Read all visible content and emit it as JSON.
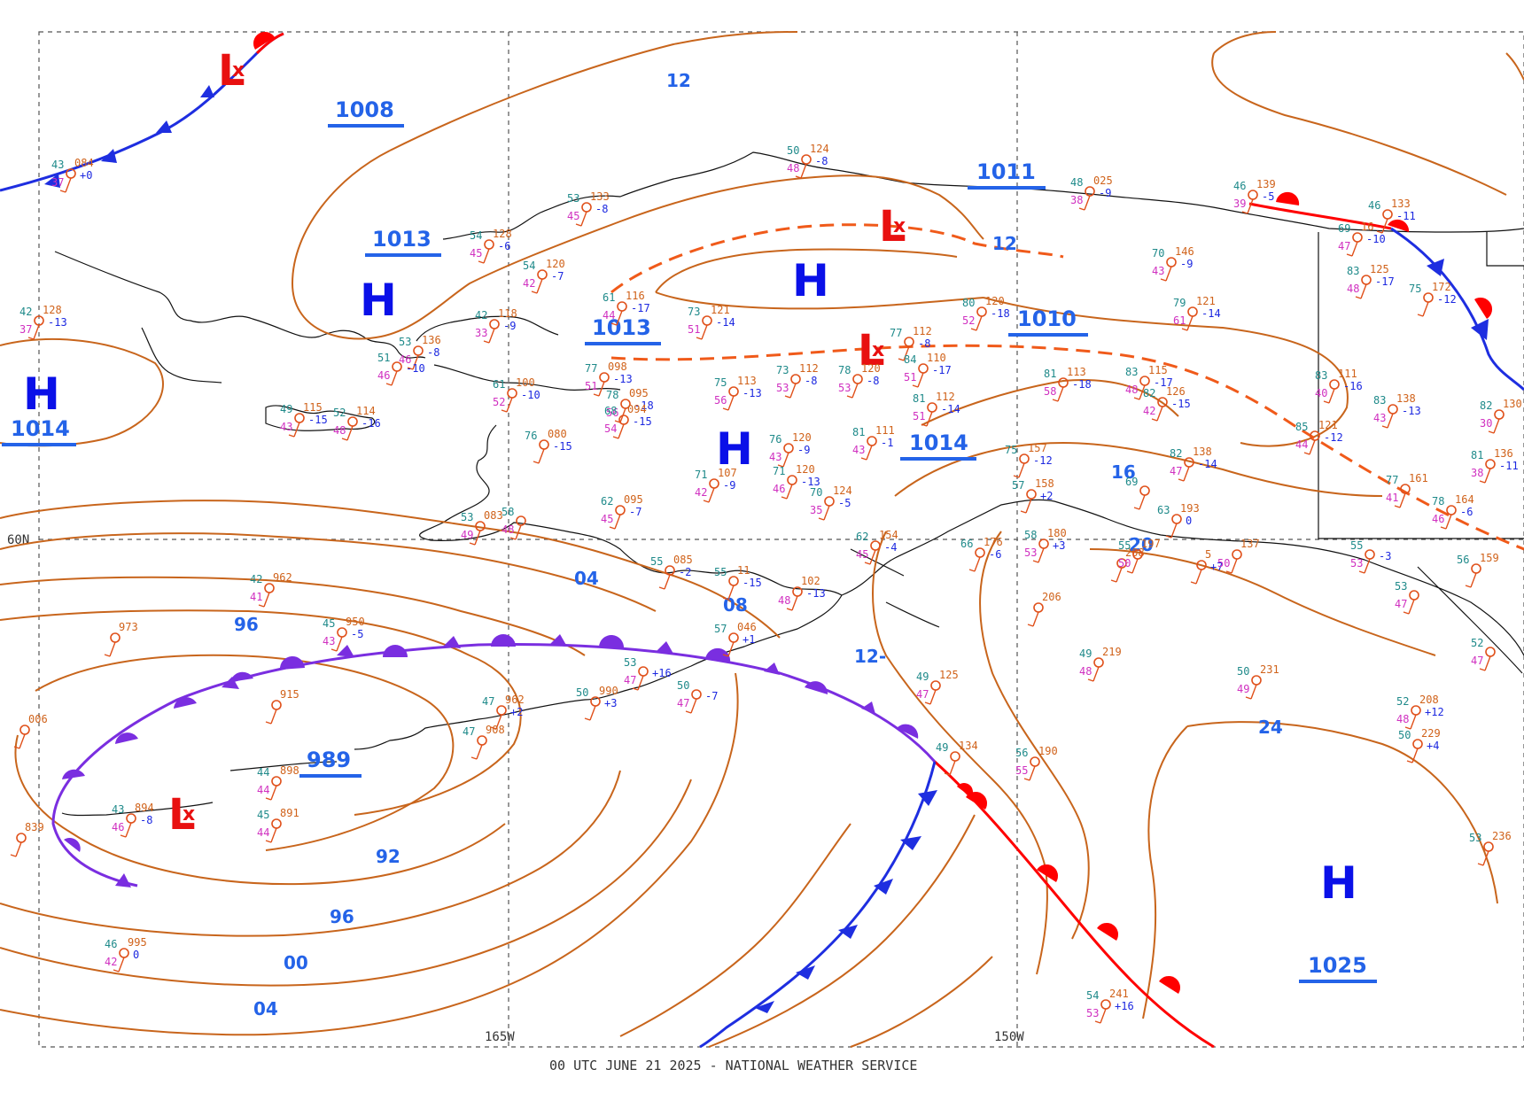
{
  "footer": "00 UTC JUNE 21 2025 - NATIONAL WEATHER SERVICE",
  "axes": {
    "lat_label": "60N",
    "lon_labels": [
      "165W",
      "150W"
    ]
  },
  "colors": {
    "isobar": "#c8651c",
    "pressure_label": "#2463e8",
    "high": "#0a10e8",
    "low": "#e81010",
    "cold_front": "#1e2ee0",
    "warm_front": "#ff0000",
    "occluded_front": "#7a2ee0",
    "trough": "#f05a1a"
  },
  "pressure_centers": [
    {
      "symbol": "H",
      "value": "1014"
    },
    {
      "symbol": "H",
      "value": "1013"
    },
    {
      "symbol": "H",
      "value": "1014"
    },
    {
      "symbol": "H",
      "value": "1014"
    },
    {
      "symbol": "H",
      "value": "1025"
    },
    {
      "symbol": "L",
      "value": "1008"
    },
    {
      "symbol": "L",
      "value": "1011"
    },
    {
      "symbol": "L",
      "value": "1010"
    },
    {
      "symbol": "L",
      "value": "989"
    }
  ],
  "isobar_labels": [
    "12",
    "12",
    "12-",
    "04",
    "08",
    "96",
    "96",
    "92",
    "00",
    "04",
    "16",
    "20",
    "24"
  ],
  "stations": [
    {
      "t": "43",
      "p": "084",
      "d": "37",
      "c": "+0"
    },
    {
      "t": "42",
      "p": "128",
      "d": "37",
      "c": "-13"
    },
    {
      "t": "54",
      "p": "128",
      "d": "45",
      "c": "-6"
    },
    {
      "t": "53",
      "p": "133",
      "d": "45",
      "c": "-8"
    },
    {
      "t": "50",
      "p": "124",
      "d": "48",
      "c": "-8"
    },
    {
      "t": "54",
      "p": "120",
      "d": "42",
      "c": "-7"
    },
    {
      "t": "61",
      "p": "116",
      "d": "44",
      "c": "-17"
    },
    {
      "t": "73",
      "p": "121",
      "d": "51",
      "c": "-14"
    },
    {
      "t": "42",
      "p": "118",
      "d": "33",
      "c": "-9"
    },
    {
      "t": "53",
      "p": "136",
      "d": "46",
      "c": "-8"
    },
    {
      "t": "51",
      "p": "",
      "d": "46",
      "c": "-10"
    },
    {
      "t": "49",
      "p": "115",
      "d": "43",
      "c": "-15"
    },
    {
      "t": "52",
      "p": "114",
      "d": "48",
      "c": "-16"
    },
    {
      "t": "61",
      "p": "100",
      "d": "52",
      "c": "-10"
    },
    {
      "t": "77",
      "p": "098",
      "d": "51",
      "c": "-13"
    },
    {
      "t": "78",
      "p": "095",
      "d": "56",
      "c": "-18"
    },
    {
      "t": "68",
      "p": "094",
      "d": "54",
      "c": "-15"
    },
    {
      "t": "75",
      "p": "113",
      "d": "56",
      "c": "-13"
    },
    {
      "t": "73",
      "p": "112",
      "d": "53",
      "c": "-8"
    },
    {
      "t": "78",
      "p": "120",
      "d": "53",
      "c": "-8"
    },
    {
      "t": "77",
      "p": "112",
      "d": "",
      "c": "-8"
    },
    {
      "t": "80",
      "p": "120",
      "d": "52",
      "c": "-18"
    },
    {
      "t": "84",
      "p": "110",
      "d": "51",
      "c": "-17"
    },
    {
      "t": "81",
      "p": "112",
      "d": "51",
      "c": "-14"
    },
    {
      "t": "81",
      "p": "113",
      "d": "58",
      "c": "-18"
    },
    {
      "t": "83",
      "p": "115",
      "d": "48",
      "c": "-17"
    },
    {
      "t": "82",
      "p": "126",
      "d": "42",
      "c": "-15"
    },
    {
      "t": "76",
      "p": "080",
      "d": "",
      "c": "-15"
    },
    {
      "t": "76",
      "p": "120",
      "d": "43",
      "c": "-9"
    },
    {
      "t": "81",
      "p": "111",
      "d": "43",
      "c": "-1"
    },
    {
      "t": "71",
      "p": "107",
      "d": "42",
      "c": "-9"
    },
    {
      "t": "71",
      "p": "120",
      "d": "46",
      "c": "-13"
    },
    {
      "t": "70",
      "p": "124",
      "d": "35",
      "c": "-5"
    },
    {
      "t": "62",
      "p": "095",
      "d": "45",
      "c": "-7"
    },
    {
      "t": "53",
      "p": "083",
      "d": "49",
      "c": ""
    },
    {
      "t": "58",
      "p": "",
      "d": "48",
      "c": ""
    },
    {
      "t": "46",
      "p": "139",
      "d": "39",
      "c": "-5"
    },
    {
      "t": "48",
      "p": "025",
      "d": "38",
      "c": "-9"
    },
    {
      "t": "46",
      "p": "133",
      "d": "",
      "c": "-11"
    },
    {
      "t": "69",
      "p": "16",
      "d": "47",
      "c": "-10"
    },
    {
      "t": "70",
      "p": "146",
      "d": "43",
      "c": "-9"
    },
    {
      "t": "83",
      "p": "125",
      "d": "48",
      "c": "-17"
    },
    {
      "t": "79",
      "p": "121",
      "d": "61",
      "c": "-14"
    },
    {
      "t": "75",
      "p": "172",
      "d": "",
      "c": "-12"
    },
    {
      "t": "83",
      "p": "111",
      "d": "40",
      "c": "-16"
    },
    {
      "t": "83",
      "p": "138",
      "d": "43",
      "c": "-13"
    },
    {
      "t": "82",
      "p": "130",
      "d": "30",
      "c": ""
    },
    {
      "t": "85",
      "p": "121",
      "d": "44",
      "c": "-12"
    },
    {
      "t": "82",
      "p": "138",
      "d": "47",
      "c": "-14"
    },
    {
      "t": "81",
      "p": "136",
      "d": "38",
      "c": "-11"
    },
    {
      "t": "75",
      "p": "157",
      "d": "",
      "c": "-12"
    },
    {
      "t": "77",
      "p": "161",
      "d": "41",
      "c": ""
    },
    {
      "t": "78",
      "p": "164",
      "d": "46",
      "c": "-6"
    },
    {
      "t": "57",
      "p": "158",
      "d": "",
      "c": "+2"
    },
    {
      "t": "69",
      "p": "",
      "d": "",
      "c": ""
    },
    {
      "t": "63",
      "p": "193",
      "d": "",
      "c": "0"
    },
    {
      "t": "58",
      "p": "180",
      "d": "53",
      "c": "+3"
    },
    {
      "t": "62",
      "p": "154",
      "d": "45",
      "c": "-4"
    },
    {
      "t": "66",
      "p": "176",
      "d": "",
      "c": "-6"
    },
    {
      "t": "",
      "p": "208",
      "d": "",
      "c": ""
    },
    {
      "t": "",
      "p": "206",
      "d": "",
      "c": ""
    },
    {
      "t": "",
      "p": "5",
      "d": "",
      "c": "+7"
    },
    {
      "t": "55",
      "p": "085",
      "d": "",
      "c": "-2"
    },
    {
      "t": "55",
      "p": "11",
      "d": "",
      "c": "-15"
    },
    {
      "t": "",
      "p": "102",
      "d": "48",
      "c": "-13"
    },
    {
      "t": "57",
      "p": "046",
      "d": "",
      "c": "+1"
    },
    {
      "t": "42",
      "p": "962",
      "d": "41",
      "c": ""
    },
    {
      "t": "",
      "p": "973",
      "d": "",
      "c": ""
    },
    {
      "t": "45",
      "p": "950",
      "d": "43",
      "c": "-5"
    },
    {
      "t": "",
      "p": "915",
      "d": "",
      "c": ""
    },
    {
      "t": "",
      "p": "006",
      "d": "",
      "c": ""
    },
    {
      "t": "47",
      "p": "962",
      "d": "",
      "c": "+2"
    },
    {
      "t": "50",
      "p": "990",
      "d": "",
      "c": "+3"
    },
    {
      "t": "53",
      "p": "",
      "d": "47",
      "c": "+16"
    },
    {
      "t": "50",
      "p": "",
      "d": "47",
      "c": "-7"
    },
    {
      "t": "47",
      "p": "908",
      "d": "",
      "c": ""
    },
    {
      "t": "44",
      "p": "898",
      "d": "44",
      "c": ""
    },
    {
      "t": "43",
      "p": "894",
      "d": "46",
      "c": "-8"
    },
    {
      "t": "45",
      "p": "891",
      "d": "44",
      "c": ""
    },
    {
      "t": "",
      "p": "839",
      "d": "",
      "c": ""
    },
    {
      "t": "46",
      "p": "995",
      "d": "42",
      "c": "0"
    },
    {
      "t": "49",
      "p": "125",
      "d": "47",
      "c": ""
    },
    {
      "t": "49",
      "p": "134",
      "d": "",
      "c": ""
    },
    {
      "t": "56",
      "p": "190",
      "d": "55",
      "c": ""
    },
    {
      "t": "49",
      "p": "219",
      "d": "48",
      "c": ""
    },
    {
      "t": "50",
      "p": "231",
      "d": "49",
      "c": ""
    },
    {
      "t": "52",
      "p": "208",
      "d": "48",
      "c": "+12"
    },
    {
      "t": "50",
      "p": "229",
      "d": "",
      "c": "+4"
    },
    {
      "t": "53",
      "p": "236",
      "d": "",
      "c": ""
    },
    {
      "t": "54",
      "p": "241",
      "d": "53",
      "c": "+16"
    },
    {
      "t": "55",
      "p": "197",
      "d": "50",
      "c": ""
    },
    {
      "t": "",
      "p": "137",
      "d": "50",
      "c": ""
    },
    {
      "t": "55",
      "p": "",
      "d": "53",
      "c": "-3"
    },
    {
      "t": "53",
      "p": "",
      "d": "47",
      "c": ""
    },
    {
      "t": "56",
      "p": "159",
      "d": "",
      "c": ""
    },
    {
      "t": "52",
      "p": "",
      "d": "47",
      "c": ""
    }
  ]
}
